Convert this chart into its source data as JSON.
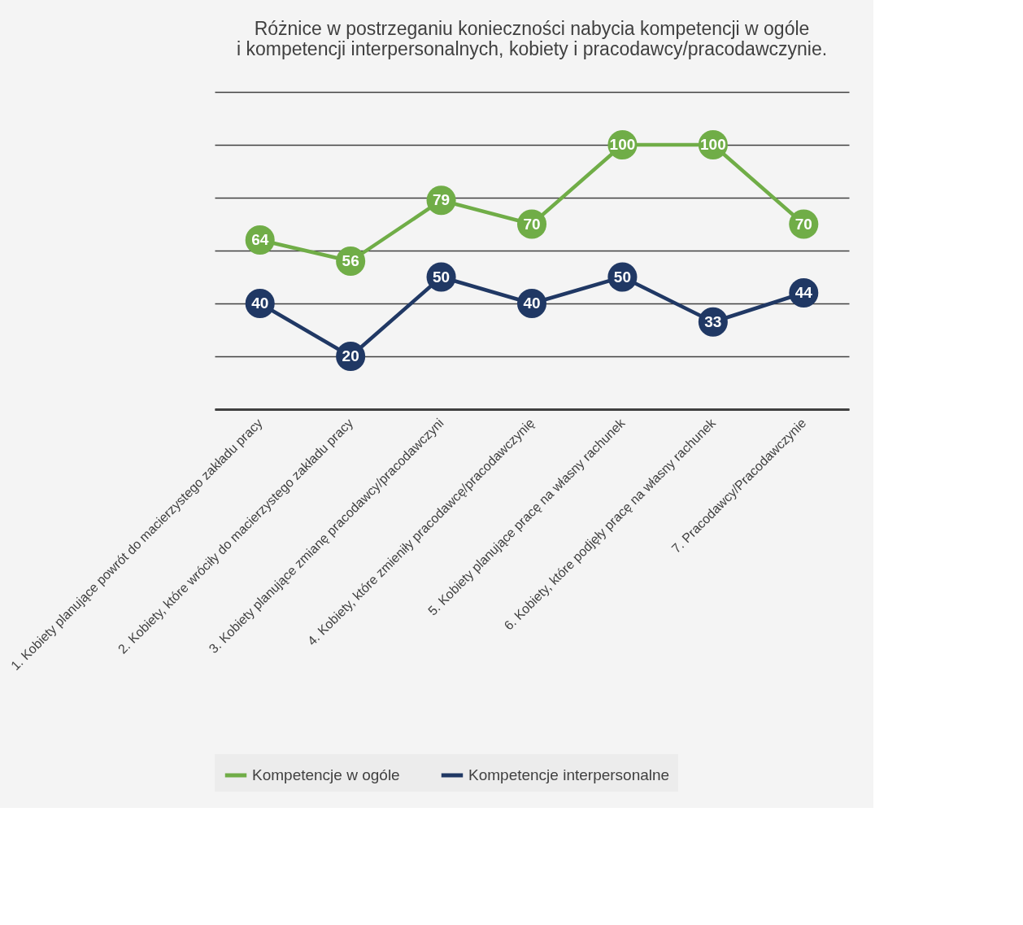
{
  "chart_data": {
    "type": "line",
    "title": [
      "Różnice w postrzeganiu konieczności nabycia kompetencji w ogóle",
      "i kompetencji interpersonalnych, kobiety i pracodawcy/pracodawczynie."
    ],
    "categories": [
      "1. Kobiety planujące powrót do macierzystego zakładu pracy",
      "2. Kobiety, które wróciły do macierzystego zakładu pracy",
      "3. Kobiety planujące zmianę pracodawcy/pracodawczyni",
      "4. Kobiety, które zmieniły pracodawcę/pracodawczynię",
      "5. Kobiety planujące pracę na własny rachunek",
      "6. Kobiety, które podjęły pracę na własny rachunek",
      "7. Pracodawcy/Pracodawczynie"
    ],
    "series": [
      {
        "name": "Kompetencje w ogóle",
        "color": "#70ad47",
        "values": [
          64,
          56,
          79,
          70,
          100,
          100,
          70
        ]
      },
      {
        "name": "Kompetencje interpersonalne",
        "color": "#203864",
        "values": [
          40,
          20,
          50,
          40,
          50,
          33,
          44
        ]
      }
    ],
    "ylim": [
      0,
      120
    ],
    "yticks": [
      {
        "value": 0,
        "label": null
      },
      {
        "value": 20,
        "label": null
      },
      {
        "value": 40,
        "label": null
      },
      {
        "value": 60,
        "label": null
      },
      {
        "value": 80,
        "label": null
      },
      {
        "value": 100,
        "label": null
      },
      {
        "value": 120,
        "label": null
      }
    ],
    "tick_labels": "x",
    "grid": "y",
    "legend": "bottom",
    "marker": "circle",
    "line_style": "solid",
    "data_labels": true
  }
}
